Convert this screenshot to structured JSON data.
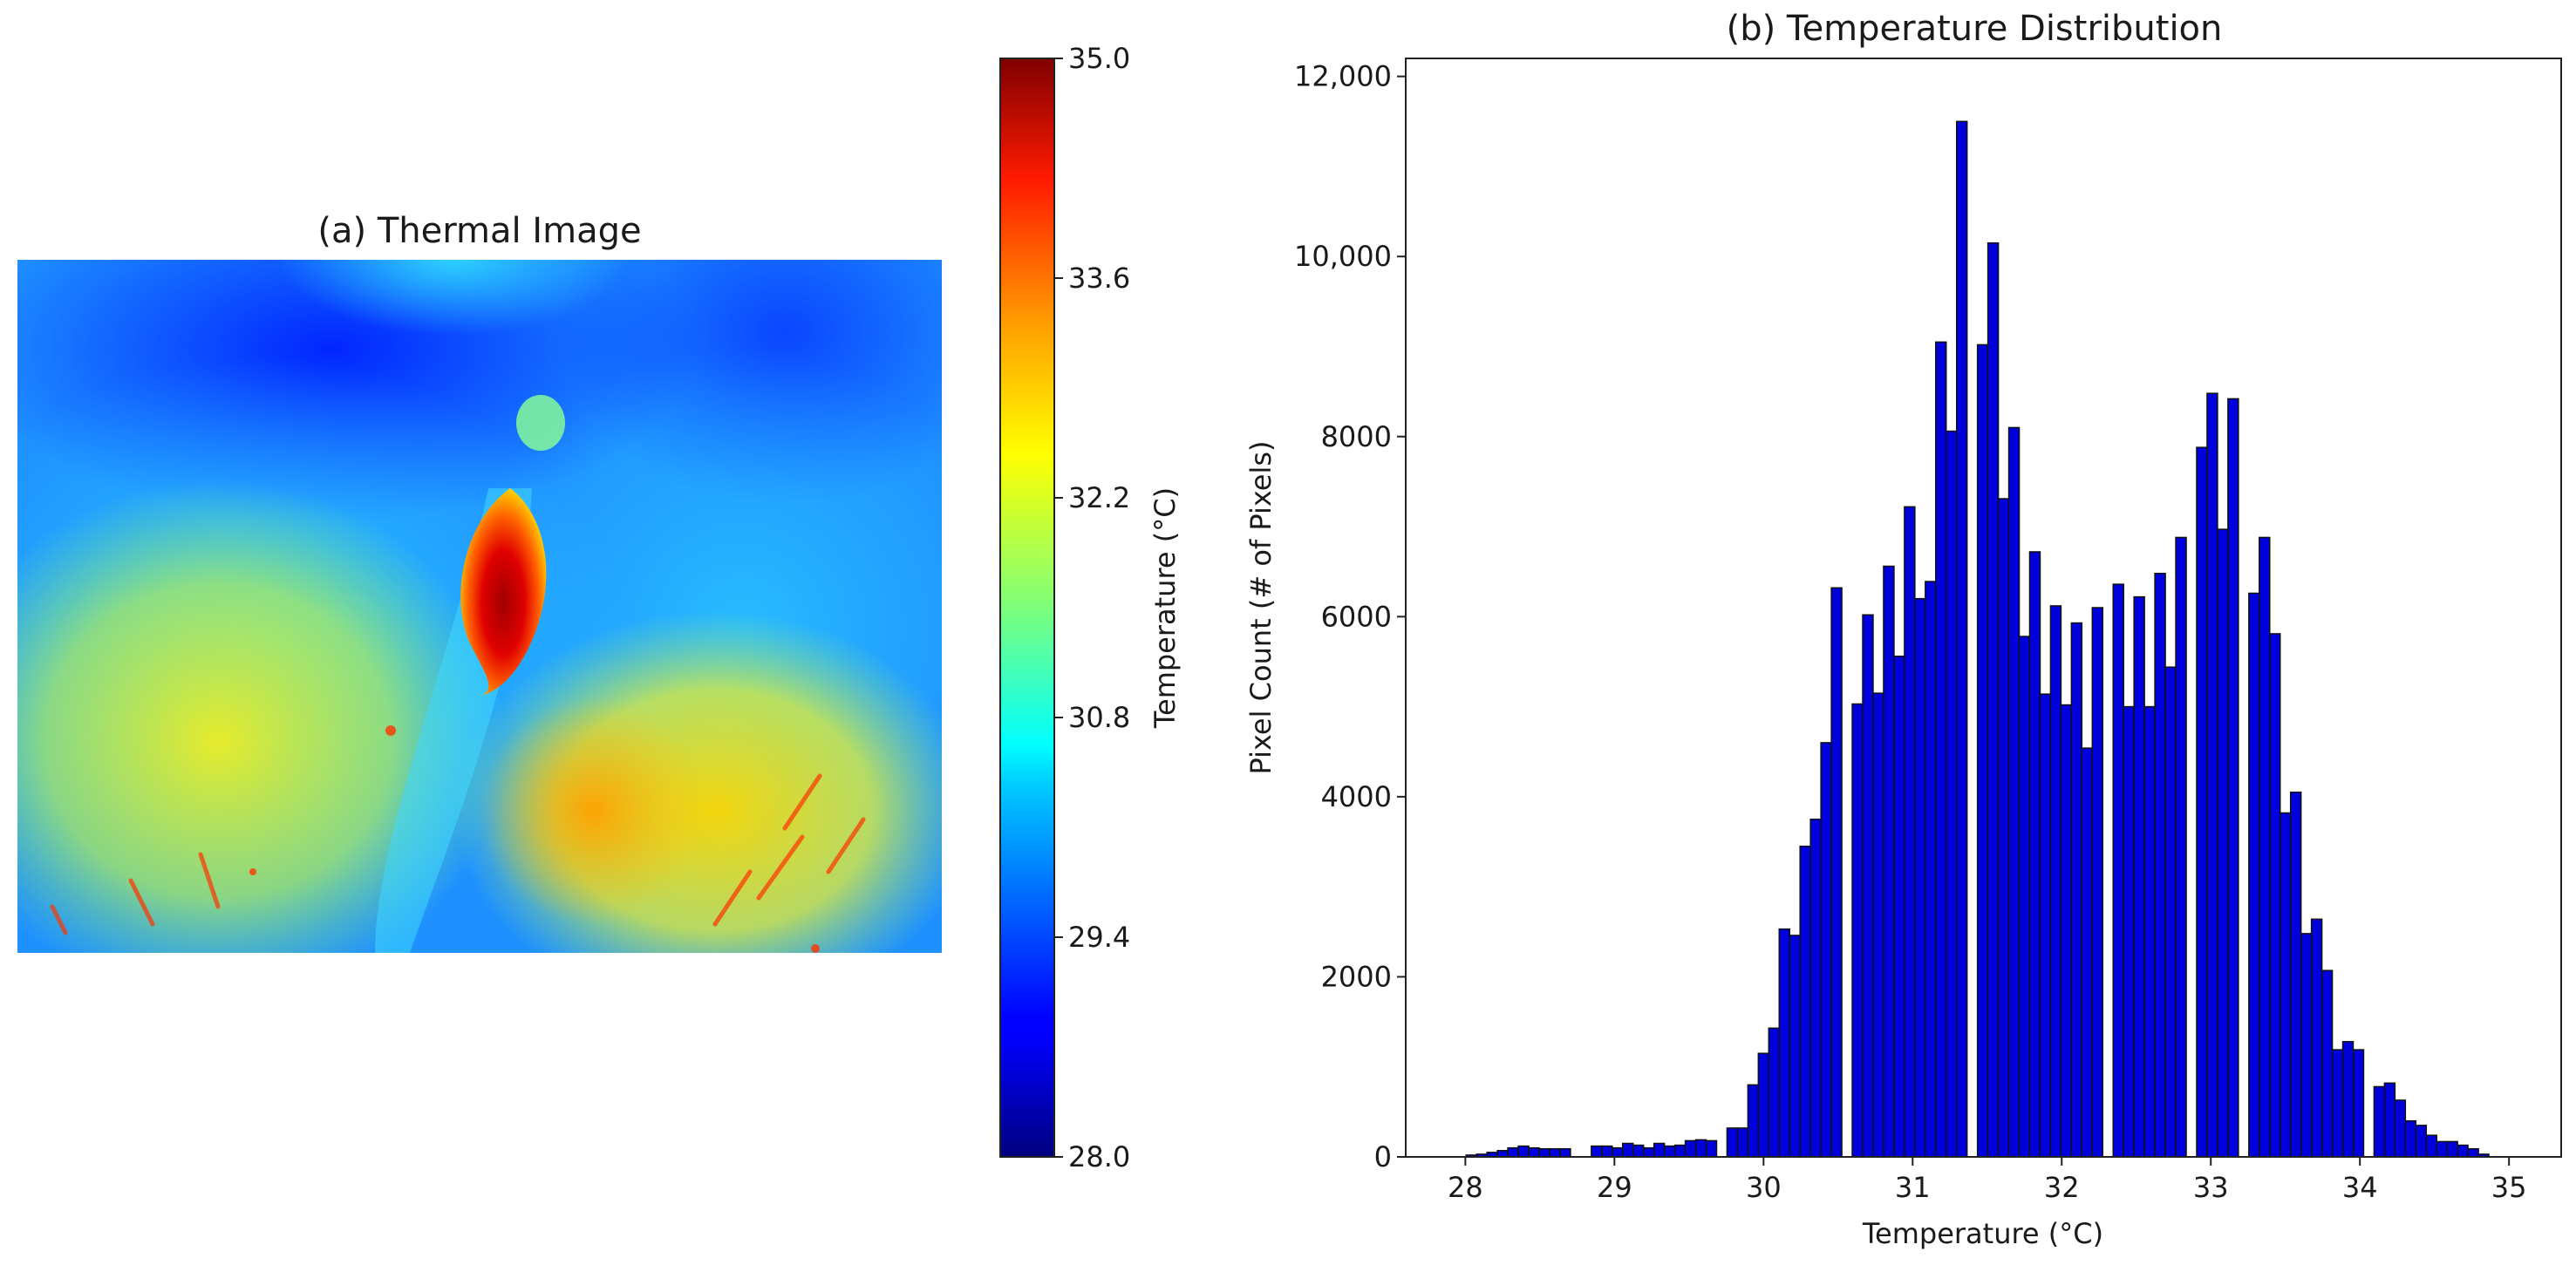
{
  "panel_a": {
    "title": "(a) Thermal Image",
    "colorbar": {
      "label": "Temperature (°C)",
      "min": 28.0,
      "max": 35.0,
      "ticks": [
        "35.0",
        "33.6",
        "32.2",
        "30.8",
        "29.4",
        "28.0"
      ],
      "tick_values": [
        35.0,
        33.6,
        32.2,
        30.8,
        29.4,
        28.0
      ],
      "colormap": "jet"
    }
  },
  "chart_data": {
    "type": "bar",
    "title": "(b) Temperature Distribution",
    "xlabel": "Temperature (°C)",
    "ylabel": "Pixel Count (# of Pixels)",
    "xlim": [
      27.6,
      35.35
    ],
    "ylim": [
      0,
      12200
    ],
    "bin_width": 0.07,
    "bar_color": "#0000dd",
    "edge_color": "#111111",
    "grid": false,
    "xticks": [
      "28",
      "29",
      "30",
      "31",
      "32",
      "33",
      "34",
      "35"
    ],
    "xtick_values": [
      28,
      29,
      30,
      31,
      32,
      33,
      34,
      35
    ],
    "yticks": [
      "0",
      "2000",
      "4000",
      "6000",
      "8000",
      "10,000",
      "12,000"
    ],
    "ytick_values": [
      0,
      2000,
      4000,
      6000,
      8000,
      10000,
      12000
    ],
    "x": [
      28.04,
      28.11,
      28.18,
      28.25,
      28.32,
      28.39,
      28.46,
      28.53,
      28.6,
      28.67,
      28.74,
      28.81,
      28.88,
      28.95,
      29.02,
      29.09,
      29.16,
      29.23,
      29.3,
      29.37,
      29.44,
      29.51,
      29.58,
      29.65,
      29.72,
      29.79,
      29.86,
      29.93,
      30.0,
      30.07,
      30.14,
      30.21,
      30.28,
      30.35,
      30.42,
      30.49,
      30.56,
      30.63,
      30.7,
      30.77,
      30.84,
      30.91,
      30.98,
      31.05,
      31.12,
      31.19,
      31.26,
      31.33,
      31.4,
      31.47,
      31.54,
      31.61,
      31.68,
      31.75,
      31.82,
      31.89,
      31.96,
      32.03,
      32.1,
      32.17,
      32.24,
      32.31,
      32.38,
      32.45,
      32.52,
      32.59,
      32.66,
      32.73,
      32.8,
      32.87,
      32.94,
      33.01,
      33.08,
      33.15,
      33.22,
      33.29,
      33.36,
      33.43,
      33.5,
      33.57,
      33.64,
      33.71,
      33.78,
      33.85,
      33.92,
      33.99,
      34.06,
      34.13,
      34.2,
      34.27,
      34.34,
      34.41,
      34.48,
      34.55,
      34.62,
      34.69,
      34.76,
      34.83,
      34.9,
      34.97
    ],
    "values": [
      20,
      30,
      50,
      70,
      100,
      120,
      100,
      90,
      90,
      90,
      0,
      0,
      120,
      120,
      100,
      150,
      130,
      100,
      150,
      120,
      130,
      180,
      190,
      180,
      0,
      320,
      320,
      800,
      1150,
      1430,
      2530,
      2460,
      3450,
      3750,
      4600,
      6320,
      0,
      5030,
      6020,
      5150,
      6560,
      5560,
      7220,
      6200,
      6390,
      9050,
      8060,
      11500,
      0,
      9020,
      10150,
      7310,
      8100,
      5780,
      6720,
      5140,
      6120,
      5020,
      5930,
      4540,
      6100,
      0,
      6360,
      5000,
      6220,
      5000,
      6480,
      5440,
      6880,
      0,
      7880,
      8480,
      6970,
      8420,
      0,
      6260,
      6880,
      5810,
      3820,
      4050,
      2480,
      2640,
      2070,
      1190,
      1280,
      1190,
      0,
      780,
      820,
      630,
      400,
      350,
      240,
      170,
      170,
      130,
      90,
      30,
      0,
      0
    ]
  }
}
